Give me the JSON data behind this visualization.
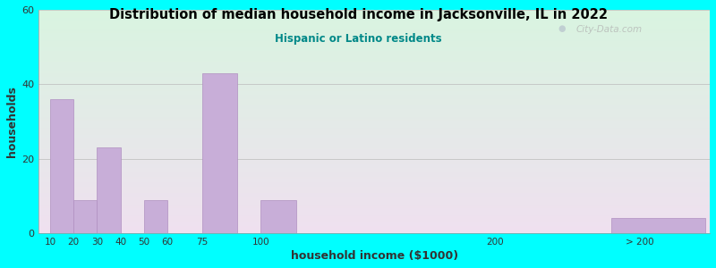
{
  "title": "Distribution of median household income in Jacksonville, IL in 2022",
  "subtitle": "Hispanic or Latino residents",
  "xlabel": "household income ($1000)",
  "ylabel": "households",
  "background_outer": "#00FFFF",
  "background_inner_color1": "#d8f0d0",
  "background_inner_color2": "#f0e0f0",
  "bar_color": "#c8aed8",
  "bar_edge_color": "#b090c0",
  "title_color": "#000000",
  "subtitle_color": "#008888",
  "axis_label_color": "#333333",
  "bar_lefts": [
    10,
    20,
    30,
    40,
    50,
    60,
    75,
    100,
    200,
    250
  ],
  "bar_widths": [
    10,
    10,
    10,
    10,
    10,
    15,
    15,
    15,
    5,
    40
  ],
  "bar_heights": [
    36,
    9,
    23,
    0,
    9,
    0,
    43,
    9,
    0,
    4
  ],
  "xtick_positions": [
    10,
    20,
    30,
    40,
    50,
    60,
    75,
    100,
    200,
    262
  ],
  "xtick_labels": [
    "10",
    "20",
    "30",
    "40",
    "50",
    "60",
    "75",
    "100",
    "200",
    "> 200"
  ],
  "ylim": [
    0,
    60
  ],
  "yticks": [
    0,
    20,
    40,
    60
  ],
  "xlim_left": 5,
  "xlim_right": 292,
  "grid_color": "#bbbbbb",
  "watermark": "City-Data.com"
}
